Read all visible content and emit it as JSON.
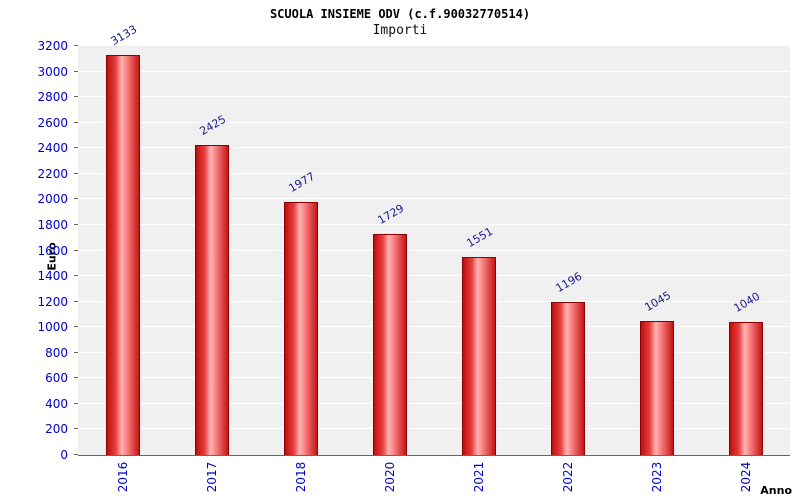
{
  "header": {
    "title": "SCUOLA INSIEME ODV (c.f.90032770514)",
    "subtitle": "Importi"
  },
  "chart_data": {
    "type": "bar",
    "title": "SCUOLA INSIEME ODV (c.f.90032770514)",
    "subtitle": "Importi",
    "categories": [
      "2016",
      "2017",
      "2018",
      "2020",
      "2021",
      "2022",
      "2023",
      "2024"
    ],
    "values": [
      3133,
      2425,
      1977,
      1729,
      1551,
      1196,
      1045,
      1040
    ],
    "xlabel": "Anno",
    "ylabel": "Euro",
    "ylim": [
      0,
      3200
    ],
    "ytick_step": 200,
    "grid": true,
    "legend": "none",
    "plot_bg": "#f0f0f0",
    "bar_edge_color": "#8b0000",
    "bar_color": "#e03a3a",
    "value_label_color": "#1a1a8c",
    "tick_label_color": "#0000cc"
  }
}
